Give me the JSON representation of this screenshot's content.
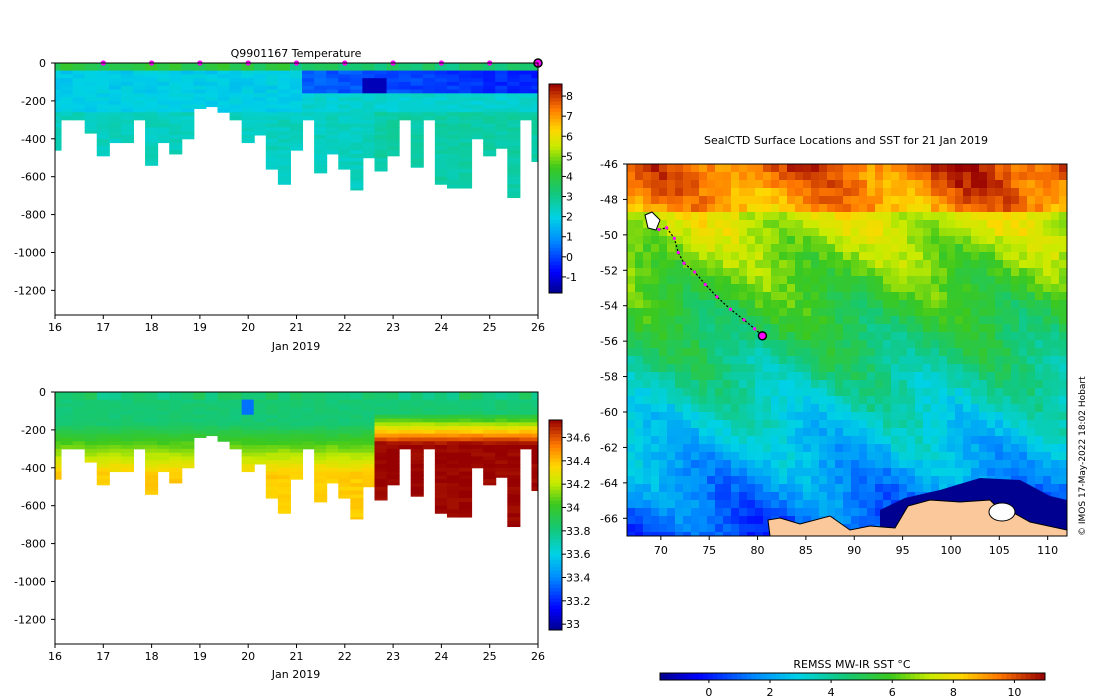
{
  "credit": "© IMOS 17-May-2022 18:02 Hobart",
  "chart_data": [
    {
      "type": "heatmap",
      "id": "temperature",
      "title": "Q9901167  Temperature",
      "xlabel": "Jan 2019",
      "ylabel": "",
      "xlim": [
        16,
        26
      ],
      "ylim": [
        -1330,
        0
      ],
      "xticks": [
        "16",
        "17",
        "18",
        "19",
        "20",
        "21",
        "22",
        "23",
        "24",
        "25",
        "26"
      ],
      "yticks": [
        0,
        -200,
        -400,
        -600,
        -800,
        -1000,
        -1200
      ],
      "ytick_labels": [
        "0",
        "-200",
        "-400",
        "-600",
        "-800",
        "-1000",
        "-1200"
      ],
      "colorbar": {
        "min": -1.8,
        "max": 8.6,
        "ticks": [
          "8",
          "7",
          "6",
          "5",
          "4",
          "3",
          "2",
          "1",
          "0",
          "-1"
        ],
        "tick_values": [
          8,
          7,
          6,
          5,
          4,
          3,
          2,
          1,
          0,
          -1
        ]
      },
      "profile_markers_x": [
        17,
        18,
        19,
        20,
        21,
        22,
        23,
        24,
        25
      ],
      "highlight_x": 26,
      "profiles": [
        {
          "t": 16.0,
          "max_depth": 460
        },
        {
          "t": 16.25,
          "max_depth": 300
        },
        {
          "t": 16.5,
          "max_depth": 300
        },
        {
          "t": 16.75,
          "max_depth": 370
        },
        {
          "t": 17.0,
          "max_depth": 490
        },
        {
          "t": 17.25,
          "max_depth": 420
        },
        {
          "t": 17.5,
          "max_depth": 420
        },
        {
          "t": 17.75,
          "max_depth": 300
        },
        {
          "t": 18.0,
          "max_depth": 540
        },
        {
          "t": 18.25,
          "max_depth": 420
        },
        {
          "t": 18.5,
          "max_depth": 480
        },
        {
          "t": 18.75,
          "max_depth": 400
        },
        {
          "t": 19.0,
          "max_depth": 240
        },
        {
          "t": 19.25,
          "max_depth": 230
        },
        {
          "t": 19.5,
          "max_depth": 260
        },
        {
          "t": 19.75,
          "max_depth": 300
        },
        {
          "t": 20.0,
          "max_depth": 420
        },
        {
          "t": 20.25,
          "max_depth": 380
        },
        {
          "t": 20.5,
          "max_depth": 560
        },
        {
          "t": 20.75,
          "max_depth": 640
        },
        {
          "t": 21.0,
          "max_depth": 460
        },
        {
          "t": 21.25,
          "max_depth": 300
        },
        {
          "t": 21.5,
          "max_depth": 580
        },
        {
          "t": 21.75,
          "max_depth": 480
        },
        {
          "t": 22.0,
          "max_depth": 560
        },
        {
          "t": 22.25,
          "max_depth": 670
        },
        {
          "t": 22.5,
          "max_depth": 500
        },
        {
          "t": 22.75,
          "max_depth": 570
        },
        {
          "t": 23.0,
          "max_depth": 490
        },
        {
          "t": 23.25,
          "max_depth": 300
        },
        {
          "t": 23.5,
          "max_depth": 550
        },
        {
          "t": 23.75,
          "max_depth": 300
        },
        {
          "t": 24.0,
          "max_depth": 640
        },
        {
          "t": 24.25,
          "max_depth": 660
        },
        {
          "t": 24.5,
          "max_depth": 660
        },
        {
          "t": 24.75,
          "max_depth": 400
        },
        {
          "t": 25.0,
          "max_depth": 490
        },
        {
          "t": 25.25,
          "max_depth": 450
        },
        {
          "t": 25.5,
          "max_depth": 710
        },
        {
          "t": 25.75,
          "max_depth": 300
        },
        {
          "t": 26.0,
          "max_depth": 520
        }
      ]
    },
    {
      "type": "heatmap",
      "id": "salinity",
      "title": "",
      "xlabel": "Jan 2019",
      "ylabel": "",
      "xlim": [
        16,
        26
      ],
      "ylim": [
        -1330,
        0
      ],
      "xticks": [
        "16",
        "17",
        "18",
        "19",
        "20",
        "21",
        "22",
        "23",
        "24",
        "25",
        "26"
      ],
      "yticks": [
        0,
        -200,
        -400,
        -600,
        -800,
        -1000,
        -1200
      ],
      "ytick_labels": [
        "0",
        "-200",
        "-400",
        "-600",
        "-800",
        "-1000",
        "-1200"
      ],
      "colorbar": {
        "min": 32.95,
        "max": 34.75,
        "ticks": [
          "34.6",
          "34.4",
          "34.2",
          "34",
          "33.8",
          "33.6",
          "33.4",
          "33.2",
          "33"
        ],
        "tick_values": [
          34.6,
          34.4,
          34.2,
          34.0,
          33.8,
          33.6,
          33.4,
          33.2,
          33.0
        ]
      }
    },
    {
      "type": "heatmap",
      "id": "sst_map",
      "title": "SealCTD Surface Locations and SST for 21 Jan 2019",
      "xlabel": "",
      "ylabel": "",
      "xlim": [
        66.5,
        112
      ],
      "ylim": [
        -67,
        -46
      ],
      "xticks": [
        "70",
        "75",
        "80",
        "85",
        "90",
        "95",
        "100",
        "105",
        "110"
      ],
      "xtick_values": [
        70,
        75,
        80,
        85,
        90,
        95,
        100,
        105,
        110
      ],
      "yticks": [
        "-46",
        "-48",
        "-50",
        "-52",
        "-54",
        "-56",
        "-58",
        "-60",
        "-62",
        "-64",
        "-66"
      ],
      "ytick_values": [
        -46,
        -48,
        -50,
        -52,
        -54,
        -56,
        -58,
        -60,
        -62,
        -64,
        -66
      ],
      "colorbar": {
        "label": "REMSS MW-IR SST °C",
        "min": -1.6,
        "max": 11.0,
        "ticks": [
          "0",
          "2",
          "4",
          "6",
          "8",
          "10"
        ],
        "tick_values": [
          0,
          2,
          4,
          6,
          8,
          10
        ]
      },
      "track": [
        {
          "lon": 69.8,
          "lat": -49.7
        },
        {
          "lon": 70.6,
          "lat": -49.6
        },
        {
          "lon": 71.4,
          "lat": -50.2
        },
        {
          "lon": 71.8,
          "lat": -51.0
        },
        {
          "lon": 72.4,
          "lat": -51.6
        },
        {
          "lon": 73.5,
          "lat": -52.1
        },
        {
          "lon": 74.6,
          "lat": -52.8
        },
        {
          "lon": 75.8,
          "lat": -53.5
        },
        {
          "lon": 77.2,
          "lat": -54.2
        },
        {
          "lon": 78.6,
          "lat": -54.8
        },
        {
          "lon": 79.7,
          "lat": -55.3
        },
        {
          "lon": 80.5,
          "lat": -55.7
        }
      ],
      "current_position": {
        "lon": 80.5,
        "lat": -55.7
      }
    }
  ]
}
